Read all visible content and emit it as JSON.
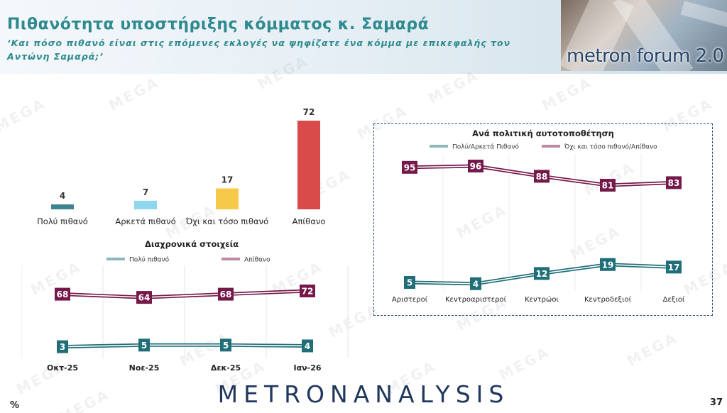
{
  "header": {
    "title": "Πιθανότητα υποστήριξης κόμματος κ. Σαμαρά",
    "subtitle": "‘Και πόσο πιθανό είναι στις επόμενες εκλογές να ψηφίζατε ένα κόμμα με επικεφαλής τον Αντώνη Σαμαρά;’",
    "logo_text": "metron forum 2.0"
  },
  "watermark_text": "MEGA",
  "footer": {
    "brand": "METRONANALYSIS",
    "page_number": "37",
    "unit_label": "%"
  },
  "colors": {
    "teal": "#1f6e78",
    "maroon": "#75194a",
    "bar_dark_teal": "#3e8590",
    "bar_light_blue": "#8fd6ef",
    "bar_yellow": "#f7c948",
    "bar_red": "#d94a4a"
  },
  "chart_data": [
    {
      "type": "bar",
      "title": "",
      "categories": [
        "Πολύ πιθανό",
        "Αρκετά πιθανό",
        "Όχι και τόσο πιθανό",
        "Απίθανο"
      ],
      "values": [
        4,
        7,
        17,
        72
      ],
      "colors": [
        "#3e8590",
        "#8fd6ef",
        "#f7c948",
        "#d94a4a"
      ]
    },
    {
      "type": "line",
      "title": "Διαχρονικά στοιχεία",
      "categories": [
        "Οκτ-25",
        "Νοε-25",
        "Δεκ-25",
        "Ιαν-26"
      ],
      "series": [
        {
          "name": "Πολύ πιθανό",
          "values": [
            3,
            5,
            5,
            4
          ],
          "color": "#1f6e78"
        },
        {
          "name": "Απίθανο",
          "values": [
            68,
            64,
            68,
            72
          ],
          "color": "#75194a"
        }
      ],
      "legend": "top"
    },
    {
      "type": "line",
      "title": "Ανά πολιτική αυτοτοποθέτηση",
      "categories": [
        "Αριστεροί",
        "Κεντροαριστεροί",
        "Κεντρώοι",
        "Κεντροδεξιοί",
        "Δεξιοί"
      ],
      "series": [
        {
          "name": "Πολύ/Αρκετά Πιθανό",
          "values": [
            5,
            4,
            12,
            19,
            17
          ],
          "color": "#1f6e78"
        },
        {
          "name": "Όχι και τόσο πιθανό/Απίθανο",
          "values": [
            95,
            96,
            88,
            81,
            83
          ],
          "color": "#75194a"
        }
      ],
      "legend": "top"
    }
  ]
}
